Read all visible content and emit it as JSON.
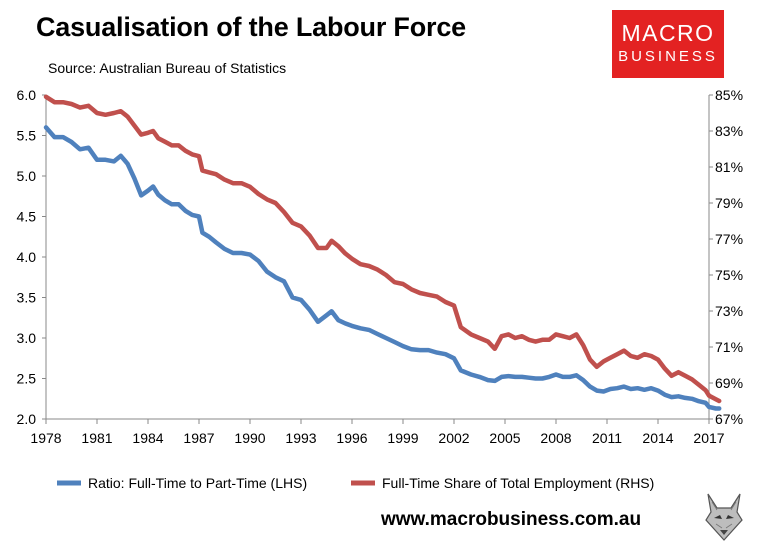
{
  "header": {
    "title": "Casualisation of the Labour Force",
    "source": "Source: Australian Bureau of Statistics"
  },
  "logo": {
    "line1": "MACRO",
    "line2": "BUSINESS",
    "color": "#e32222"
  },
  "footer": {
    "website": "www.macrobusiness.com.au",
    "mascot_icon": "fox-head-icon"
  },
  "chart_data": {
    "type": "line",
    "title": "Casualisation of the Labour Force",
    "x_ticks": [
      "1978",
      "1981",
      "1984",
      "1987",
      "1990",
      "1993",
      "1996",
      "1999",
      "2002",
      "2005",
      "2008",
      "2011",
      "2014",
      "2017"
    ],
    "xlim": [
      1978,
      2017
    ],
    "left_axis": {
      "ylim": [
        2.0,
        6.0
      ],
      "ticks": [
        "2.0",
        "2.5",
        "3.0",
        "3.5",
        "4.0",
        "4.5",
        "5.0",
        "5.5",
        "6.0"
      ]
    },
    "right_axis": {
      "ylim": [
        67,
        85
      ],
      "ticks": [
        "67%",
        "69%",
        "71%",
        "73%",
        "75%",
        "77%",
        "79%",
        "81%",
        "83%",
        "85%"
      ]
    },
    "grid": false,
    "legend_position": "bottom",
    "series": [
      {
        "name": "Ratio: Full-Time to Part-Time (LHS)",
        "axis": "left",
        "color": "#4f81bd",
        "points": [
          [
            1978.0,
            5.6
          ],
          [
            1978.5,
            5.48
          ],
          [
            1979.0,
            5.48
          ],
          [
            1979.5,
            5.42
          ],
          [
            1980.0,
            5.33
          ],
          [
            1980.5,
            5.35
          ],
          [
            1981.0,
            5.2
          ],
          [
            1981.5,
            5.2
          ],
          [
            1982.0,
            5.18
          ],
          [
            1982.4,
            5.25
          ],
          [
            1982.8,
            5.15
          ],
          [
            1983.2,
            4.97
          ],
          [
            1983.6,
            4.76
          ],
          [
            1984.0,
            4.82
          ],
          [
            1984.3,
            4.87
          ],
          [
            1984.6,
            4.77
          ],
          [
            1985.0,
            4.7
          ],
          [
            1985.4,
            4.65
          ],
          [
            1985.8,
            4.65
          ],
          [
            1986.2,
            4.57
          ],
          [
            1986.6,
            4.52
          ],
          [
            1987.0,
            4.5
          ],
          [
            1987.2,
            4.3
          ],
          [
            1987.6,
            4.25
          ],
          [
            1988.0,
            4.18
          ],
          [
            1988.5,
            4.1
          ],
          [
            1989.0,
            4.05
          ],
          [
            1989.5,
            4.05
          ],
          [
            1990.0,
            4.03
          ],
          [
            1990.5,
            3.95
          ],
          [
            1991.0,
            3.82
          ],
          [
            1991.5,
            3.75
          ],
          [
            1992.0,
            3.7
          ],
          [
            1992.5,
            3.5
          ],
          [
            1993.0,
            3.47
          ],
          [
            1993.5,
            3.35
          ],
          [
            1994.0,
            3.2
          ],
          [
            1994.5,
            3.28
          ],
          [
            1994.8,
            3.33
          ],
          [
            1995.2,
            3.22
          ],
          [
            1995.6,
            3.18
          ],
          [
            1996.0,
            3.15
          ],
          [
            1996.5,
            3.12
          ],
          [
            1997.0,
            3.1
          ],
          [
            1997.5,
            3.05
          ],
          [
            1998.0,
            3.0
          ],
          [
            1998.5,
            2.95
          ],
          [
            1999.0,
            2.9
          ],
          [
            1999.5,
            2.86
          ],
          [
            2000.0,
            2.85
          ],
          [
            2000.5,
            2.85
          ],
          [
            2001.0,
            2.82
          ],
          [
            2001.5,
            2.8
          ],
          [
            2002.0,
            2.75
          ],
          [
            2002.4,
            2.6
          ],
          [
            2003.0,
            2.55
          ],
          [
            2003.5,
            2.52
          ],
          [
            2004.0,
            2.48
          ],
          [
            2004.4,
            2.47
          ],
          [
            2004.8,
            2.52
          ],
          [
            2005.2,
            2.53
          ],
          [
            2005.6,
            2.52
          ],
          [
            2006.0,
            2.52
          ],
          [
            2006.4,
            2.51
          ],
          [
            2006.8,
            2.5
          ],
          [
            2007.2,
            2.5
          ],
          [
            2007.6,
            2.52
          ],
          [
            2008.0,
            2.55
          ],
          [
            2008.4,
            2.52
          ],
          [
            2008.8,
            2.52
          ],
          [
            2009.2,
            2.54
          ],
          [
            2009.6,
            2.48
          ],
          [
            2010.0,
            2.4
          ],
          [
            2010.4,
            2.35
          ],
          [
            2010.8,
            2.34
          ],
          [
            2011.2,
            2.37
          ],
          [
            2011.6,
            2.38
          ],
          [
            2012.0,
            2.4
          ],
          [
            2012.4,
            2.37
          ],
          [
            2012.8,
            2.38
          ],
          [
            2013.2,
            2.36
          ],
          [
            2013.6,
            2.38
          ],
          [
            2014.0,
            2.35
          ],
          [
            2014.4,
            2.3
          ],
          [
            2014.8,
            2.27
          ],
          [
            2015.2,
            2.28
          ],
          [
            2015.6,
            2.26
          ],
          [
            2016.0,
            2.25
          ],
          [
            2016.4,
            2.22
          ],
          [
            2016.8,
            2.2
          ],
          [
            2017.0,
            2.15
          ],
          [
            2017.4,
            2.13
          ],
          [
            2017.6,
            2.13
          ]
        ]
      },
      {
        "name": "Full-Time Share of Total Employment (RHS)",
        "axis": "right",
        "color": "#c0504d",
        "points": [
          [
            1978.0,
            84.9
          ],
          [
            1978.5,
            84.6
          ],
          [
            1979.0,
            84.6
          ],
          [
            1979.5,
            84.5
          ],
          [
            1980.0,
            84.3
          ],
          [
            1980.5,
            84.4
          ],
          [
            1981.0,
            84.0
          ],
          [
            1981.5,
            83.9
          ],
          [
            1982.0,
            84.0
          ],
          [
            1982.4,
            84.1
          ],
          [
            1982.8,
            83.8
          ],
          [
            1983.2,
            83.3
          ],
          [
            1983.6,
            82.8
          ],
          [
            1984.0,
            82.9
          ],
          [
            1984.3,
            83.0
          ],
          [
            1984.6,
            82.6
          ],
          [
            1985.0,
            82.4
          ],
          [
            1985.4,
            82.2
          ],
          [
            1985.8,
            82.2
          ],
          [
            1986.2,
            81.9
          ],
          [
            1986.6,
            81.7
          ],
          [
            1987.0,
            81.6
          ],
          [
            1987.2,
            80.8
          ],
          [
            1987.6,
            80.7
          ],
          [
            1988.0,
            80.6
          ],
          [
            1988.5,
            80.3
          ],
          [
            1989.0,
            80.1
          ],
          [
            1989.5,
            80.1
          ],
          [
            1990.0,
            79.9
          ],
          [
            1990.5,
            79.5
          ],
          [
            1991.0,
            79.2
          ],
          [
            1991.5,
            79.0
          ],
          [
            1992.0,
            78.5
          ],
          [
            1992.5,
            77.9
          ],
          [
            1993.0,
            77.7
          ],
          [
            1993.5,
            77.2
          ],
          [
            1994.0,
            76.5
          ],
          [
            1994.5,
            76.5
          ],
          [
            1994.8,
            76.9
          ],
          [
            1995.2,
            76.6
          ],
          [
            1995.6,
            76.2
          ],
          [
            1996.0,
            75.9
          ],
          [
            1996.5,
            75.6
          ],
          [
            1997.0,
            75.5
          ],
          [
            1997.5,
            75.3
          ],
          [
            1998.0,
            75.0
          ],
          [
            1998.5,
            74.6
          ],
          [
            1999.0,
            74.5
          ],
          [
            1999.5,
            74.2
          ],
          [
            2000.0,
            74.0
          ],
          [
            2000.5,
            73.9
          ],
          [
            2001.0,
            73.8
          ],
          [
            2001.5,
            73.5
          ],
          [
            2002.0,
            73.3
          ],
          [
            2002.4,
            72.1
          ],
          [
            2003.0,
            71.7
          ],
          [
            2003.5,
            71.5
          ],
          [
            2004.0,
            71.3
          ],
          [
            2004.4,
            70.9
          ],
          [
            2004.8,
            71.6
          ],
          [
            2005.2,
            71.7
          ],
          [
            2005.6,
            71.5
          ],
          [
            2006.0,
            71.6
          ],
          [
            2006.4,
            71.4
          ],
          [
            2006.8,
            71.3
          ],
          [
            2007.2,
            71.4
          ],
          [
            2007.6,
            71.4
          ],
          [
            2008.0,
            71.7
          ],
          [
            2008.4,
            71.6
          ],
          [
            2008.8,
            71.5
          ],
          [
            2009.2,
            71.7
          ],
          [
            2009.6,
            71.1
          ],
          [
            2010.0,
            70.3
          ],
          [
            2010.4,
            69.9
          ],
          [
            2010.8,
            70.2
          ],
          [
            2011.2,
            70.4
          ],
          [
            2011.6,
            70.6
          ],
          [
            2012.0,
            70.8
          ],
          [
            2012.4,
            70.5
          ],
          [
            2012.8,
            70.4
          ],
          [
            2013.2,
            70.6
          ],
          [
            2013.6,
            70.5
          ],
          [
            2014.0,
            70.3
          ],
          [
            2014.4,
            69.8
          ],
          [
            2014.8,
            69.4
          ],
          [
            2015.2,
            69.6
          ],
          [
            2015.6,
            69.4
          ],
          [
            2016.0,
            69.2
          ],
          [
            2016.4,
            68.9
          ],
          [
            2016.8,
            68.6
          ],
          [
            2017.0,
            68.3
          ],
          [
            2017.4,
            68.1
          ],
          [
            2017.6,
            68.0
          ]
        ]
      }
    ]
  }
}
